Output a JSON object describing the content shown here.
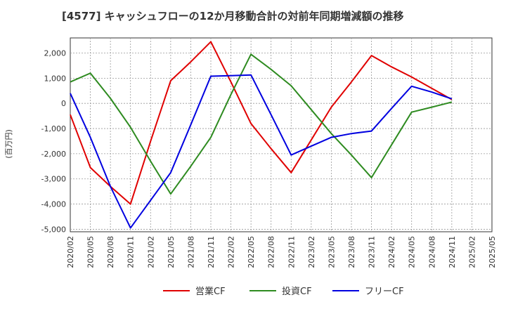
{
  "chart_data": {
    "type": "line",
    "title": "[4577]  キャッシュフローの12か月移動合計の対前年同期増減額の推移",
    "ylabel": "(百万円)",
    "xlabel": "",
    "ylim": [
      -5100,
      2600
    ],
    "yticks": [
      2000,
      1000,
      0,
      -1000,
      -2000,
      -3000,
      -4000,
      -5000
    ],
    "ytick_labels": [
      "2,000",
      "1,000",
      "0",
      "-1,000",
      "-2,000",
      "-3,000",
      "-4,000",
      "-5,000"
    ],
    "categories": [
      "2020/02",
      "2020/05",
      "2020/08",
      "2020/11",
      "2021/02",
      "2021/05",
      "2021/08",
      "2021/11",
      "2022/02",
      "2022/05",
      "2022/08",
      "2022/11",
      "2023/02",
      "2023/05",
      "2023/08",
      "2023/11",
      "2024/02",
      "2024/05",
      "2024/08",
      "2024/11",
      "2025/02",
      "2025/05"
    ],
    "grid": true,
    "legend_position": "bottom",
    "series": [
      {
        "name": "営業CF",
        "color": "#e00000",
        "values": [
          -450,
          -2550,
          -3300,
          -4000,
          -1500,
          900,
          1650,
          2450,
          850,
          -800,
          -1800,
          -2750,
          -1450,
          -150,
          850,
          1900,
          1450,
          1050,
          600,
          150,
          null,
          null
        ]
      },
      {
        "name": "投資CF",
        "color": "#2e8b20",
        "values": [
          850,
          1200,
          200,
          -950,
          -2300,
          -3600,
          -2500,
          -1350,
          350,
          1950,
          1350,
          700,
          -250,
          -1200,
          -2050,
          -2950,
          -1650,
          -350,
          -150,
          50,
          null,
          null
        ]
      },
      {
        "name": "フリーCF",
        "color": "#0000e0",
        "values": [
          400,
          -1350,
          -3300,
          -4950,
          -3850,
          -2750,
          -850,
          1080,
          1100,
          1130,
          -450,
          -2050,
          -1700,
          -1350,
          -1200,
          -1100,
          -200,
          680,
          450,
          180,
          null,
          null
        ]
      }
    ]
  }
}
